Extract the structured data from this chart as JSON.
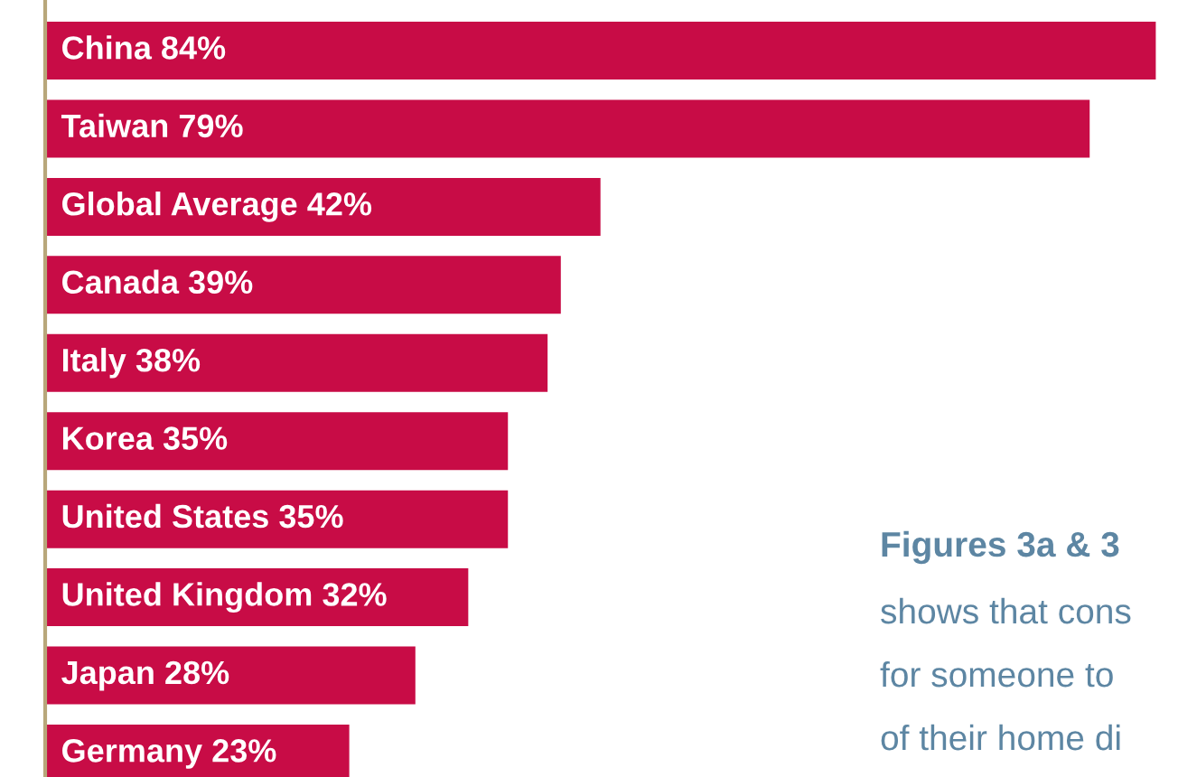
{
  "chart_data": {
    "type": "bar",
    "orientation": "horizontal",
    "categories": [
      "China",
      "Taiwan",
      "Global Average",
      "Canada",
      "Italy",
      "Korea",
      "United States",
      "United Kingdom",
      "Japan",
      "Germany"
    ],
    "values": [
      84,
      79,
      42,
      39,
      38,
      35,
      35,
      32,
      28,
      23
    ],
    "value_labels": [
      "84%",
      "79%",
      "42%",
      "39%",
      "38%",
      "35%",
      "35%",
      "32%",
      "28%",
      "23%"
    ],
    "colors": [
      "#c80c46",
      "#c80c46",
      "#c80c46",
      "#c80c46",
      "#c80c46",
      "#c80c46",
      "#c80c46",
      "#c80c46",
      "#c80c46",
      "#c80c46"
    ],
    "annotations": [
      "Figures 3a & 3",
      "shows that cons",
      "for someone to",
      "of their home di"
    ]
  }
}
